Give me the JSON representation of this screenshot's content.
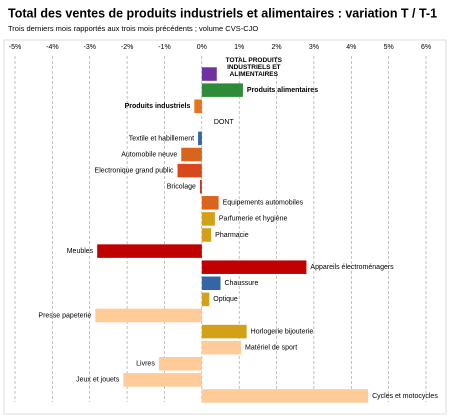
{
  "chart_data": {
    "type": "bar",
    "orientation": "horizontal",
    "title": "Total des ventes de produits industriels et alimentaires : variation T / T-1",
    "subtitle": "Trois derniers mois rapportés aux trois mois précédents ; volume CVS-CJO",
    "categories": [
      "TOTAL PRODUITS INDUSTRIELS ET ALIMENTAIRES",
      "Produits alimentaires",
      "Produits industriels",
      "DONT",
      "Textile et habillement",
      "Automobile neuve",
      "Electronique grand public",
      "Bricolage",
      "Equipements automobiles",
      "Parfumerie et hygiène",
      "Pharmacie",
      "Meubles",
      "Appareils électroménagers",
      "Chaussure",
      "Optique",
      "Presse papeterie",
      "Horlogerie bijouterie",
      "Matériel de sport",
      "Livres",
      "Jeux et jouets",
      "Cycles et motocycles"
    ],
    "values": [
      0.4,
      1.1,
      -0.2,
      null,
      -0.1,
      -0.55,
      -0.65,
      -0.05,
      0.45,
      0.35,
      0.25,
      -2.8,
      2.8,
      0.5,
      0.2,
      -2.85,
      1.2,
      1.05,
      -1.15,
      -2.1,
      4.45
    ],
    "colors": [
      "#7030a0",
      "#2e8b3a",
      "#e8731a",
      null,
      "#3465a4",
      "#d9651c",
      "#d9471c",
      "#c0392b",
      "#d9651c",
      "#d4a017",
      "#d4a017",
      "#c00000",
      "#c00000",
      "#3465a4",
      "#d4a017",
      "#ffcc99",
      "#d4a017",
      "#ffcc99",
      "#ffcc99",
      "#ffcc99",
      "#ffcc99"
    ],
    "xlim": [
      -5,
      6
    ],
    "xticks": [
      {
        "value": -5,
        "label": "-5%"
      },
      {
        "value": -4,
        "label": "-4%"
      },
      {
        "value": -3,
        "label": "-3%"
      },
      {
        "value": -2,
        "label": "-2%"
      },
      {
        "value": -1,
        "label": "-1%"
      },
      {
        "value": 0,
        "label": "0%"
      },
      {
        "value": 1,
        "label": "1%"
      },
      {
        "value": 2,
        "label": "2%"
      },
      {
        "value": 3,
        "label": "3%"
      },
      {
        "value": 4,
        "label": "4%"
      },
      {
        "value": 5,
        "label": "5%"
      },
      {
        "value": 6,
        "label": "6%"
      }
    ],
    "grid": true
  }
}
